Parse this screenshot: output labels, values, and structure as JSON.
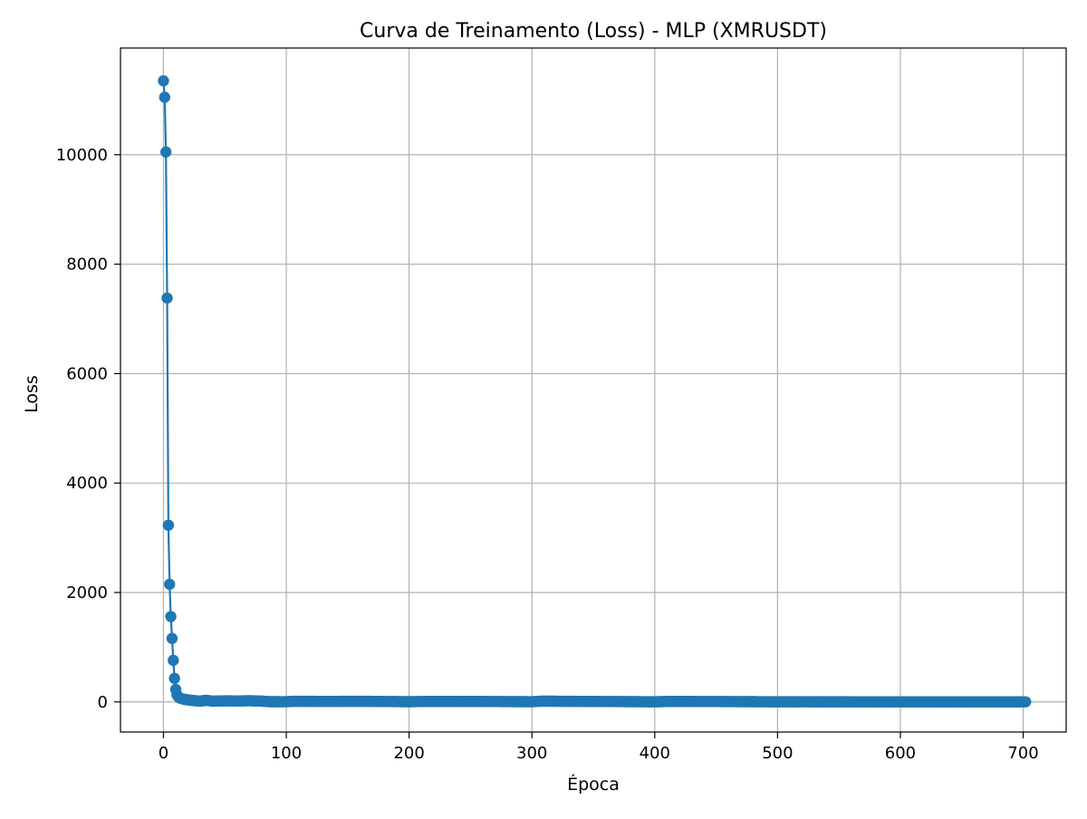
{
  "chart_data": {
    "type": "line",
    "title": "Curva de Treinamento (Loss) - MLP (XMRUSDT)",
    "xlabel": "Época",
    "ylabel": "Loss",
    "xlim": [
      -35,
      735
    ],
    "ylim": [
      -550,
      11950
    ],
    "xticks": [
      0,
      100,
      200,
      300,
      400,
      500,
      600,
      700
    ],
    "yticks": [
      0,
      2000,
      4000,
      6000,
      8000,
      10000
    ],
    "grid": true,
    "series": [
      {
        "color": "#1f77b4",
        "marker": "circle",
        "x_first": 0,
        "x_last": 702,
        "head_values": [
          11350,
          11050,
          10050,
          7380,
          3230,
          2150,
          1560,
          1160,
          760,
          430,
          230,
          130,
          95,
          75,
          65,
          58,
          52,
          48,
          44,
          40,
          37,
          34,
          31,
          28,
          26,
          24,
          22,
          20,
          18,
          16
        ],
        "tail_values": [
          {
            "x": 30,
            "y": 15
          },
          {
            "x": 35,
            "y": 30
          },
          {
            "x": 40,
            "y": 14
          },
          {
            "x": 50,
            "y": 20
          },
          {
            "x": 60,
            "y": 18
          },
          {
            "x": 70,
            "y": 22
          },
          {
            "x": 80,
            "y": 15
          },
          {
            "x": 85,
            "y": 5
          },
          {
            "x": 100,
            "y": 4
          },
          {
            "x": 106,
            "y": 12
          },
          {
            "x": 133,
            "y": 10
          },
          {
            "x": 163,
            "y": 12
          },
          {
            "x": 200,
            "y": 4
          },
          {
            "x": 215,
            "y": 10
          },
          {
            "x": 247,
            "y": 10
          },
          {
            "x": 300,
            "y": 4
          },
          {
            "x": 308,
            "y": 14
          },
          {
            "x": 400,
            "y": 3
          },
          {
            "x": 415,
            "y": 10
          },
          {
            "x": 500,
            "y": 3
          },
          {
            "x": 600,
            "y": 2
          },
          {
            "x": 702,
            "y": 2
          }
        ]
      }
    ]
  }
}
